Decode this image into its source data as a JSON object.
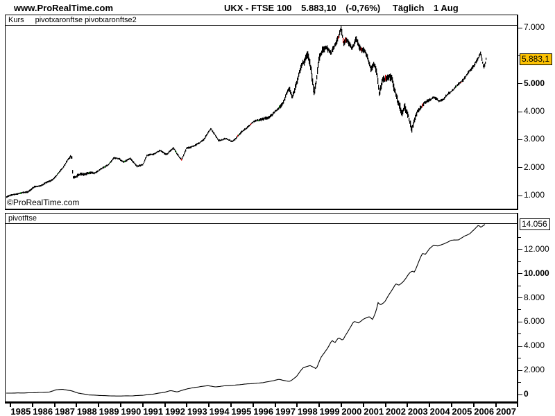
{
  "header": {
    "site": "www.ProRealTime.com",
    "instrument": "UKX - FTSE 100",
    "last_price": "5.883,10",
    "change": "(-0,76%)",
    "timeframe": "Täglich",
    "date": "1 Aug"
  },
  "colors": {
    "bar": "#000000",
    "bar_up_accent": "#007700",
    "bar_down_accent": "#dd0000",
    "price_box_bg": "#fcc203",
    "value_box_bg": "#ffffff",
    "axis": "#000000"
  },
  "watermark": "©ProRealTime.com",
  "top_panel": {
    "tab": "Kurs",
    "indicators": "pivotxaronftse pivotxaronftse2"
  },
  "bottom_panel": {
    "indicator": "pivotftse"
  },
  "chart_data": [
    {
      "type": "line",
      "name": "Kurs (FTSE 100 daily price)",
      "render": "hairline-bars",
      "xlim": [
        1984.81,
        2007.99
      ],
      "ylim": [
        554,
        7074
      ],
      "x_end": 2006.58,
      "last_value": 5883.1,
      "last_value_label": "5.883,1",
      "y_ticks": [
        {
          "v": 1000,
          "label": "1.000",
          "bold": false
        },
        {
          "v": 2000,
          "label": "2.000",
          "bold": false
        },
        {
          "v": 3000,
          "label": "3.000",
          "bold": false
        },
        {
          "v": 4000,
          "label": "4.000",
          "bold": false
        },
        {
          "v": 5000,
          "label": "5.000",
          "bold": true
        },
        {
          "v": 6000,
          "label": "",
          "bold": false
        },
        {
          "v": 7000,
          "label": "7.000",
          "bold": false
        }
      ],
      "anchors": [
        [
          1984.82,
          940
        ],
        [
          1985.1,
          1010
        ],
        [
          1985.4,
          1080
        ],
        [
          1985.8,
          1140
        ],
        [
          1986.1,
          1300
        ],
        [
          1986.5,
          1420
        ],
        [
          1986.9,
          1560
        ],
        [
          1987.1,
          1700
        ],
        [
          1987.35,
          1980
        ],
        [
          1987.6,
          2250
        ],
        [
          1987.74,
          2360
        ],
        [
          1987.8,
          2340
        ],
        [
          1987.84,
          1650
        ],
        [
          1987.95,
          1630
        ],
        [
          1988.2,
          1740
        ],
        [
          1988.5,
          1800
        ],
        [
          1988.8,
          1770
        ],
        [
          1989.1,
          1940
        ],
        [
          1989.45,
          2120
        ],
        [
          1989.7,
          2330
        ],
        [
          1989.95,
          2330
        ],
        [
          1990.15,
          2210
        ],
        [
          1990.45,
          2350
        ],
        [
          1990.75,
          2020
        ],
        [
          1991.0,
          2120
        ],
        [
          1991.2,
          2440
        ],
        [
          1991.5,
          2470
        ],
        [
          1991.8,
          2580
        ],
        [
          1992.1,
          2480
        ],
        [
          1992.4,
          2680
        ],
        [
          1992.7,
          2320
        ],
        [
          1992.78,
          2260
        ],
        [
          1993.0,
          2720
        ],
        [
          1993.4,
          2780
        ],
        [
          1993.8,
          3030
        ],
        [
          1994.1,
          3440
        ],
        [
          1994.45,
          2940
        ],
        [
          1994.75,
          3060
        ],
        [
          1995.05,
          2930
        ],
        [
          1995.4,
          3160
        ],
        [
          1995.75,
          3450
        ],
        [
          1996.1,
          3660
        ],
        [
          1996.5,
          3700
        ],
        [
          1996.85,
          3890
        ],
        [
          1997.1,
          4060
        ],
        [
          1997.4,
          4350
        ],
        [
          1997.65,
          4900
        ],
        [
          1997.78,
          4620
        ],
        [
          1998.0,
          5050
        ],
        [
          1998.25,
          5750
        ],
        [
          1998.5,
          6050
        ],
        [
          1998.65,
          5500
        ],
        [
          1998.78,
          4700
        ],
        [
          1999.0,
          5780
        ],
        [
          1999.2,
          6170
        ],
        [
          1999.35,
          6300
        ],
        [
          1999.55,
          6050
        ],
        [
          1999.8,
          6500
        ],
        [
          2000.0,
          6900
        ],
        [
          2000.12,
          6350
        ],
        [
          2000.3,
          6540
        ],
        [
          2000.5,
          6300
        ],
        [
          2000.68,
          6580
        ],
        [
          2000.85,
          6300
        ],
        [
          2001.05,
          6180
        ],
        [
          2001.2,
          5920
        ],
        [
          2001.35,
          5620
        ],
        [
          2001.5,
          5830
        ],
        [
          2001.63,
          5400
        ],
        [
          2001.73,
          4650
        ],
        [
          2001.9,
          5230
        ],
        [
          2002.1,
          5180
        ],
        [
          2002.3,
          5250
        ],
        [
          2002.5,
          4700
        ],
        [
          2002.62,
          4250
        ],
        [
          2002.76,
          3850
        ],
        [
          2002.9,
          4130
        ],
        [
          2003.05,
          3820
        ],
        [
          2003.2,
          3300
        ],
        [
          2003.45,
          4020
        ],
        [
          2003.7,
          4180
        ],
        [
          2003.95,
          4370
        ],
        [
          2004.2,
          4520
        ],
        [
          2004.45,
          4390
        ],
        [
          2004.7,
          4480
        ],
        [
          2004.95,
          4700
        ],
        [
          2005.2,
          4920
        ],
        [
          2005.45,
          5080
        ],
        [
          2005.7,
          5320
        ],
        [
          2005.95,
          5560
        ],
        [
          2006.15,
          5880
        ],
        [
          2006.33,
          6080
        ],
        [
          2006.47,
          5540
        ],
        [
          2006.58,
          5880
        ]
      ],
      "volatility": [
        [
          1984.8,
          16
        ],
        [
          1987.5,
          30
        ],
        [
          1987.9,
          55
        ],
        [
          1989,
          28
        ],
        [
          1992,
          28
        ],
        [
          1994,
          32
        ],
        [
          1996,
          30
        ],
        [
          1997.2,
          55
        ],
        [
          1998.2,
          95
        ],
        [
          1998.8,
          120
        ],
        [
          1999.5,
          85
        ],
        [
          2000.3,
          90
        ],
        [
          2001.5,
          95
        ],
        [
          2002.3,
          105
        ],
        [
          2002.9,
          115
        ],
        [
          2003.3,
          80
        ],
        [
          2004,
          42
        ],
        [
          2005,
          36
        ],
        [
          2006,
          50
        ],
        [
          2006.58,
          55
        ]
      ]
    },
    {
      "type": "line",
      "name": "pivotftse (indicator)",
      "render": "thin-line",
      "xlim": [
        1984.81,
        2007.99
      ],
      "ylim": [
        -514,
        14103
      ],
      "x_end": 2006.58,
      "last_value": 14056,
      "last_value_label": "14.056",
      "y_ticks": [
        {
          "v": 0,
          "label": "0",
          "bold": true
        },
        {
          "v": 1000,
          "label": "",
          "bold": false
        },
        {
          "v": 2000,
          "label": "2.000",
          "bold": false
        },
        {
          "v": 3000,
          "label": "",
          "bold": false
        },
        {
          "v": 4000,
          "label": "4.000",
          "bold": false
        },
        {
          "v": 5000,
          "label": "",
          "bold": false
        },
        {
          "v": 6000,
          "label": "6.000",
          "bold": false
        },
        {
          "v": 7000,
          "label": "",
          "bold": false
        },
        {
          "v": 8000,
          "label": "8.000",
          "bold": false
        },
        {
          "v": 9000,
          "label": "",
          "bold": false
        },
        {
          "v": 10000,
          "label": "10.000",
          "bold": true
        },
        {
          "v": 11000,
          "label": "",
          "bold": false
        },
        {
          "v": 12000,
          "label": "12.000",
          "bold": false
        },
        {
          "v": 13000,
          "label": "",
          "bold": false
        }
      ],
      "anchors": [
        [
          1984.82,
          110
        ],
        [
          1985.5,
          130
        ],
        [
          1986.3,
          160
        ],
        [
          1986.8,
          200
        ],
        [
          1987.1,
          400
        ],
        [
          1987.4,
          430
        ],
        [
          1987.8,
          300
        ],
        [
          1988.1,
          120
        ],
        [
          1988.6,
          -30
        ],
        [
          1989.2,
          -90
        ],
        [
          1989.8,
          -120
        ],
        [
          1990.5,
          -115
        ],
        [
          1991.0,
          -60
        ],
        [
          1991.6,
          60
        ],
        [
          1992.0,
          180
        ],
        [
          1992.3,
          330
        ],
        [
          1992.6,
          220
        ],
        [
          1993.0,
          450
        ],
        [
          1993.5,
          620
        ],
        [
          1994.0,
          740
        ],
        [
          1994.3,
          620
        ],
        [
          1994.8,
          730
        ],
        [
          1995.3,
          790
        ],
        [
          1995.8,
          880
        ],
        [
          1996.3,
          950
        ],
        [
          1996.8,
          1080
        ],
        [
          1997.2,
          1250
        ],
        [
          1997.7,
          1080
        ],
        [
          1998.0,
          1500
        ],
        [
          1998.3,
          2200
        ],
        [
          1998.6,
          2400
        ],
        [
          1998.9,
          2150
        ],
        [
          1999.1,
          3050
        ],
        [
          1999.4,
          3800
        ],
        [
          1999.6,
          4450
        ],
        [
          1999.75,
          4280
        ],
        [
          1999.9,
          4700
        ],
        [
          2000.1,
          4500
        ],
        [
          2000.35,
          5300
        ],
        [
          2000.6,
          6050
        ],
        [
          2000.8,
          5890
        ],
        [
          2001.0,
          6180
        ],
        [
          2001.3,
          6450
        ],
        [
          2001.45,
          6230
        ],
        [
          2001.6,
          6850
        ],
        [
          2001.7,
          7600
        ],
        [
          2001.8,
          7430
        ],
        [
          2002.0,
          7650
        ],
        [
          2002.25,
          8400
        ],
        [
          2002.5,
          9150
        ],
        [
          2002.65,
          9030
        ],
        [
          2002.85,
          9370
        ],
        [
          2003.1,
          10000
        ],
        [
          2003.25,
          10230
        ],
        [
          2003.35,
          10110
        ],
        [
          2003.55,
          11000
        ],
        [
          2003.7,
          11650
        ],
        [
          2003.85,
          11600
        ],
        [
          2004.0,
          12000
        ],
        [
          2004.2,
          12340
        ],
        [
          2004.45,
          12300
        ],
        [
          2004.7,
          12460
        ],
        [
          2005.0,
          12740
        ],
        [
          2005.35,
          12800
        ],
        [
          2005.6,
          13080
        ],
        [
          2005.85,
          13300
        ],
        [
          2006.1,
          13700
        ],
        [
          2006.25,
          14000
        ],
        [
          2006.35,
          13830
        ],
        [
          2006.55,
          14056
        ]
      ],
      "volatility": [
        [
          1985,
          14
        ],
        [
          1993,
          20
        ],
        [
          1997,
          30
        ],
        [
          1999,
          55
        ],
        [
          2001,
          55
        ],
        [
          2003,
          55
        ],
        [
          2005,
          40
        ],
        [
          2006.6,
          35
        ]
      ]
    }
  ],
  "x_axis": {
    "tick_years_start": 1985,
    "tick_years_end": 2008,
    "label_years": [
      1985,
      1986,
      1987,
      1988,
      1989,
      1990,
      1991,
      1992,
      1993,
      1994,
      1995,
      1996,
      1997,
      1998,
      1999,
      2000,
      2001,
      2002,
      2003,
      2004,
      2005,
      2006,
      2007
    ]
  }
}
